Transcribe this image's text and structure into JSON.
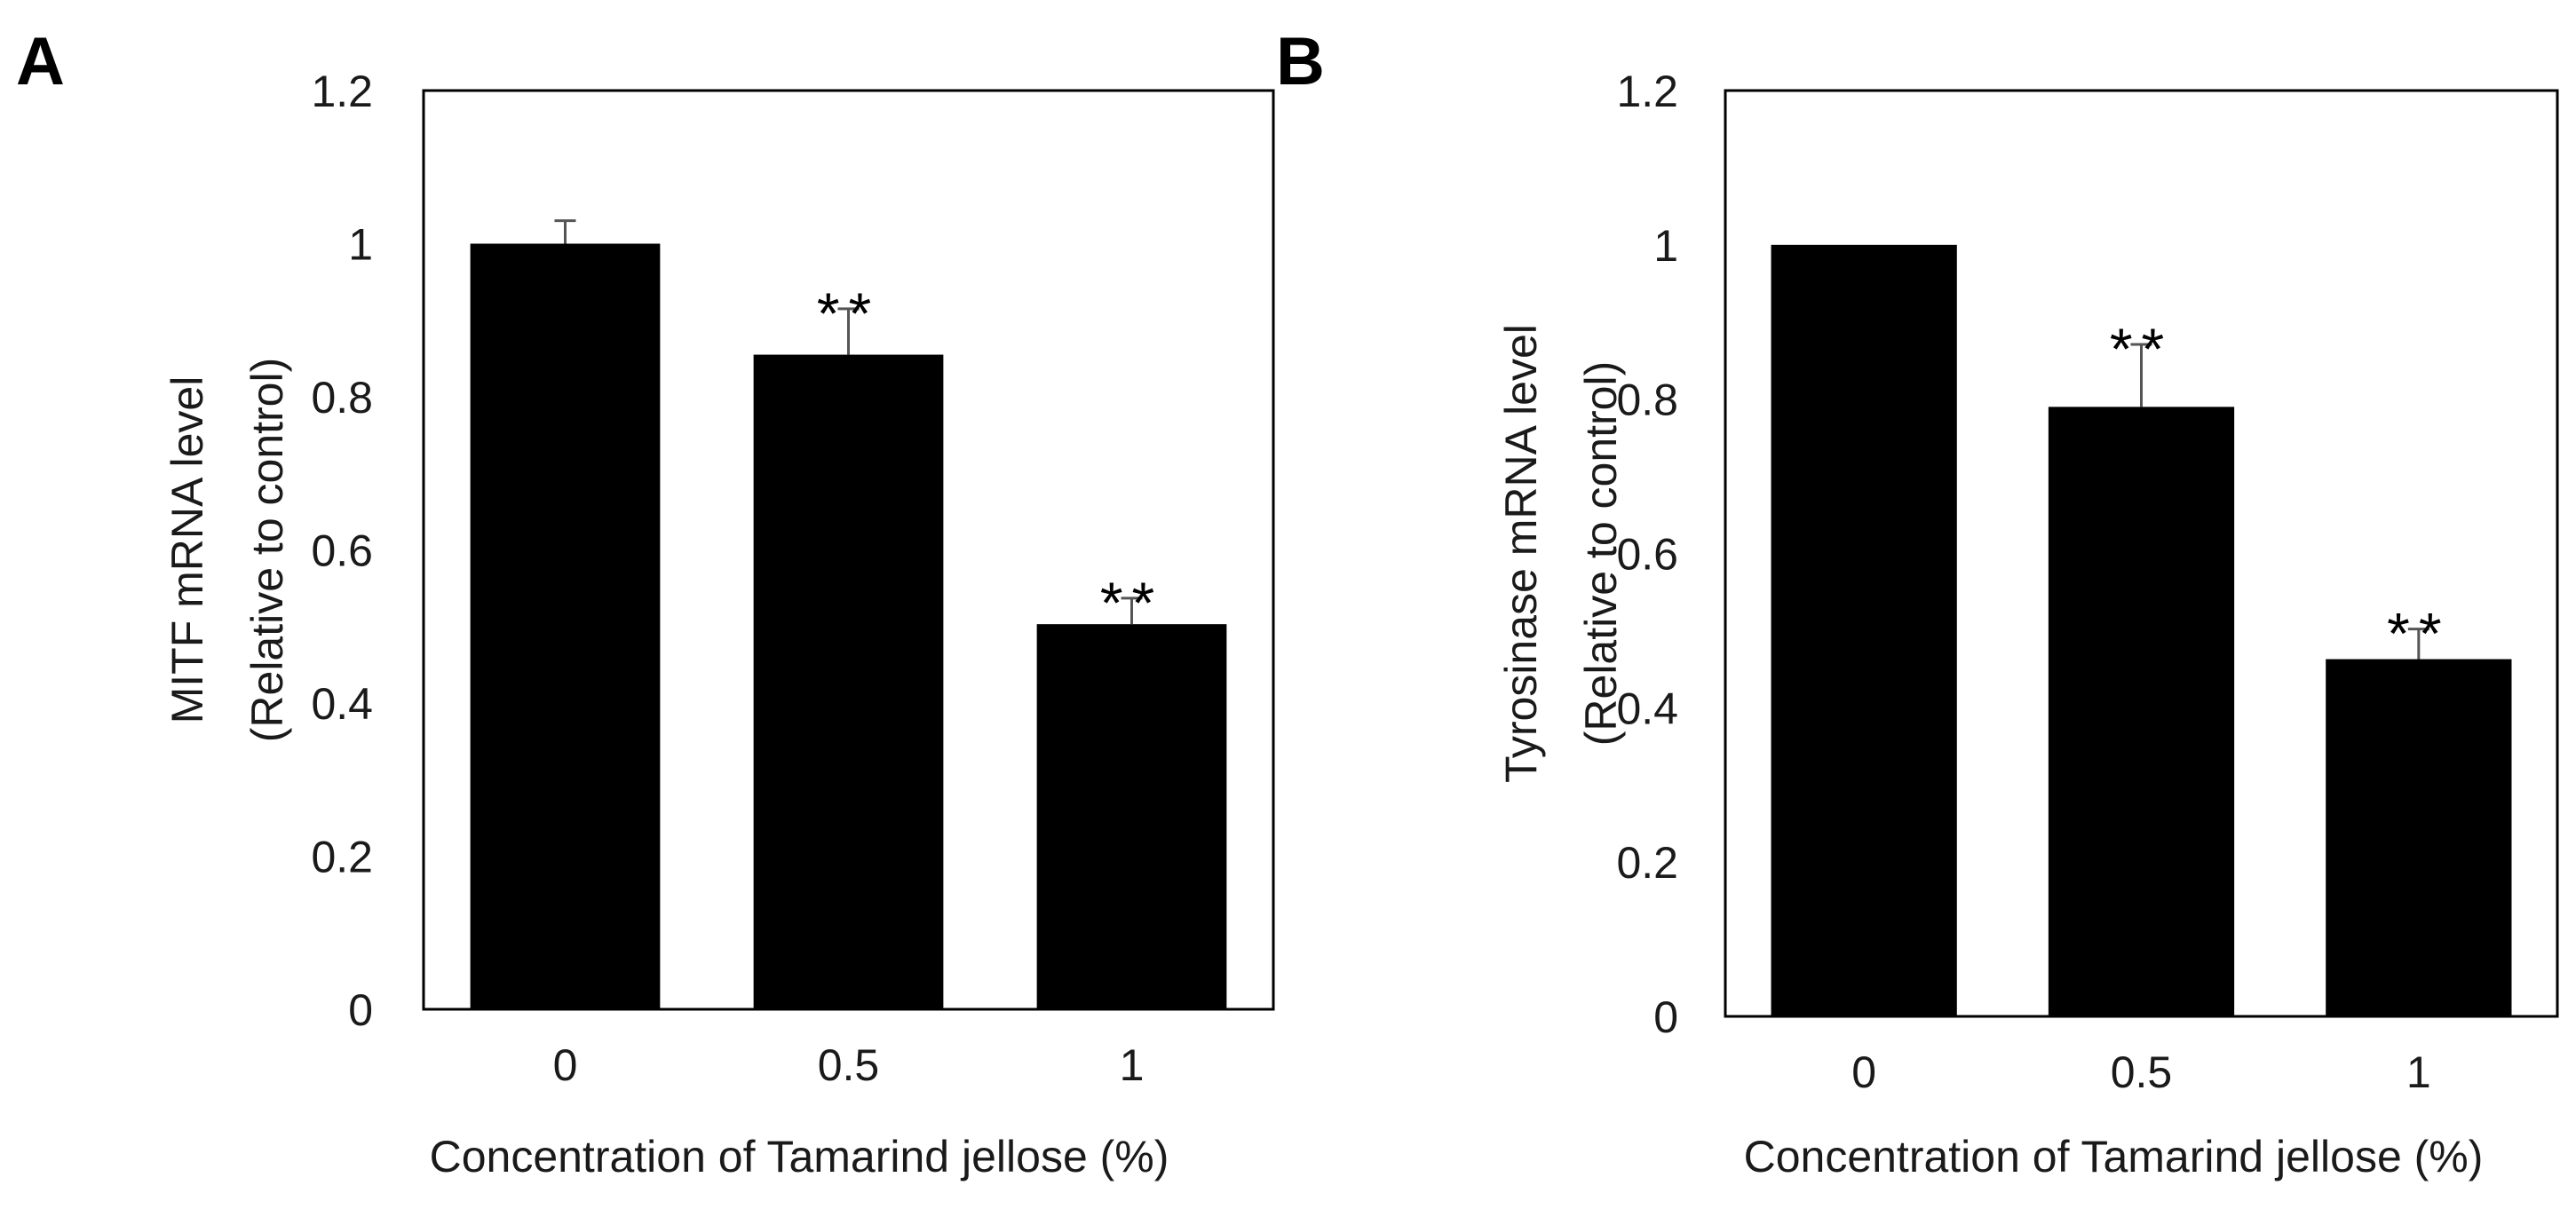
{
  "chart_data": [
    {
      "type": "bar",
      "panel_label": "A",
      "categories": [
        "0",
        "0.5",
        "1"
      ],
      "values": [
        1.0,
        0.855,
        0.503
      ],
      "error_bars": [
        0.03,
        0.06,
        0.034
      ],
      "significance": [
        "",
        "**",
        "**"
      ],
      "xlabel": "Concentration of Tamarind jellose (%)",
      "ylabel_line1": "MITF mRNA level",
      "ylabel_line2": "(Relative to control)",
      "ylim": [
        0,
        1.2
      ],
      "yticks": [
        "0",
        "0.2",
        "0.4",
        "0.6",
        "0.8",
        "1",
        "1.2"
      ],
      "bar_color": "#000000",
      "grid": false
    },
    {
      "type": "bar",
      "panel_label": "B",
      "categories": [
        "0",
        "0.5",
        "1"
      ],
      "values": [
        1.0,
        0.79,
        0.463
      ],
      "error_bars": [
        0.0,
        0.081,
        0.039
      ],
      "significance": [
        "",
        "**",
        "**"
      ],
      "xlabel": "Concentration of Tamarind jellose (%)",
      "ylabel_line1": "Tyrosinase mRNA level",
      "ylabel_line2": "(Relative to control)",
      "ylim": [
        0,
        1.2
      ],
      "yticks": [
        "0",
        "0.2",
        "0.4",
        "0.6",
        "0.8",
        "1",
        "1.2"
      ],
      "bar_color": "#000000",
      "grid": false
    }
  ]
}
